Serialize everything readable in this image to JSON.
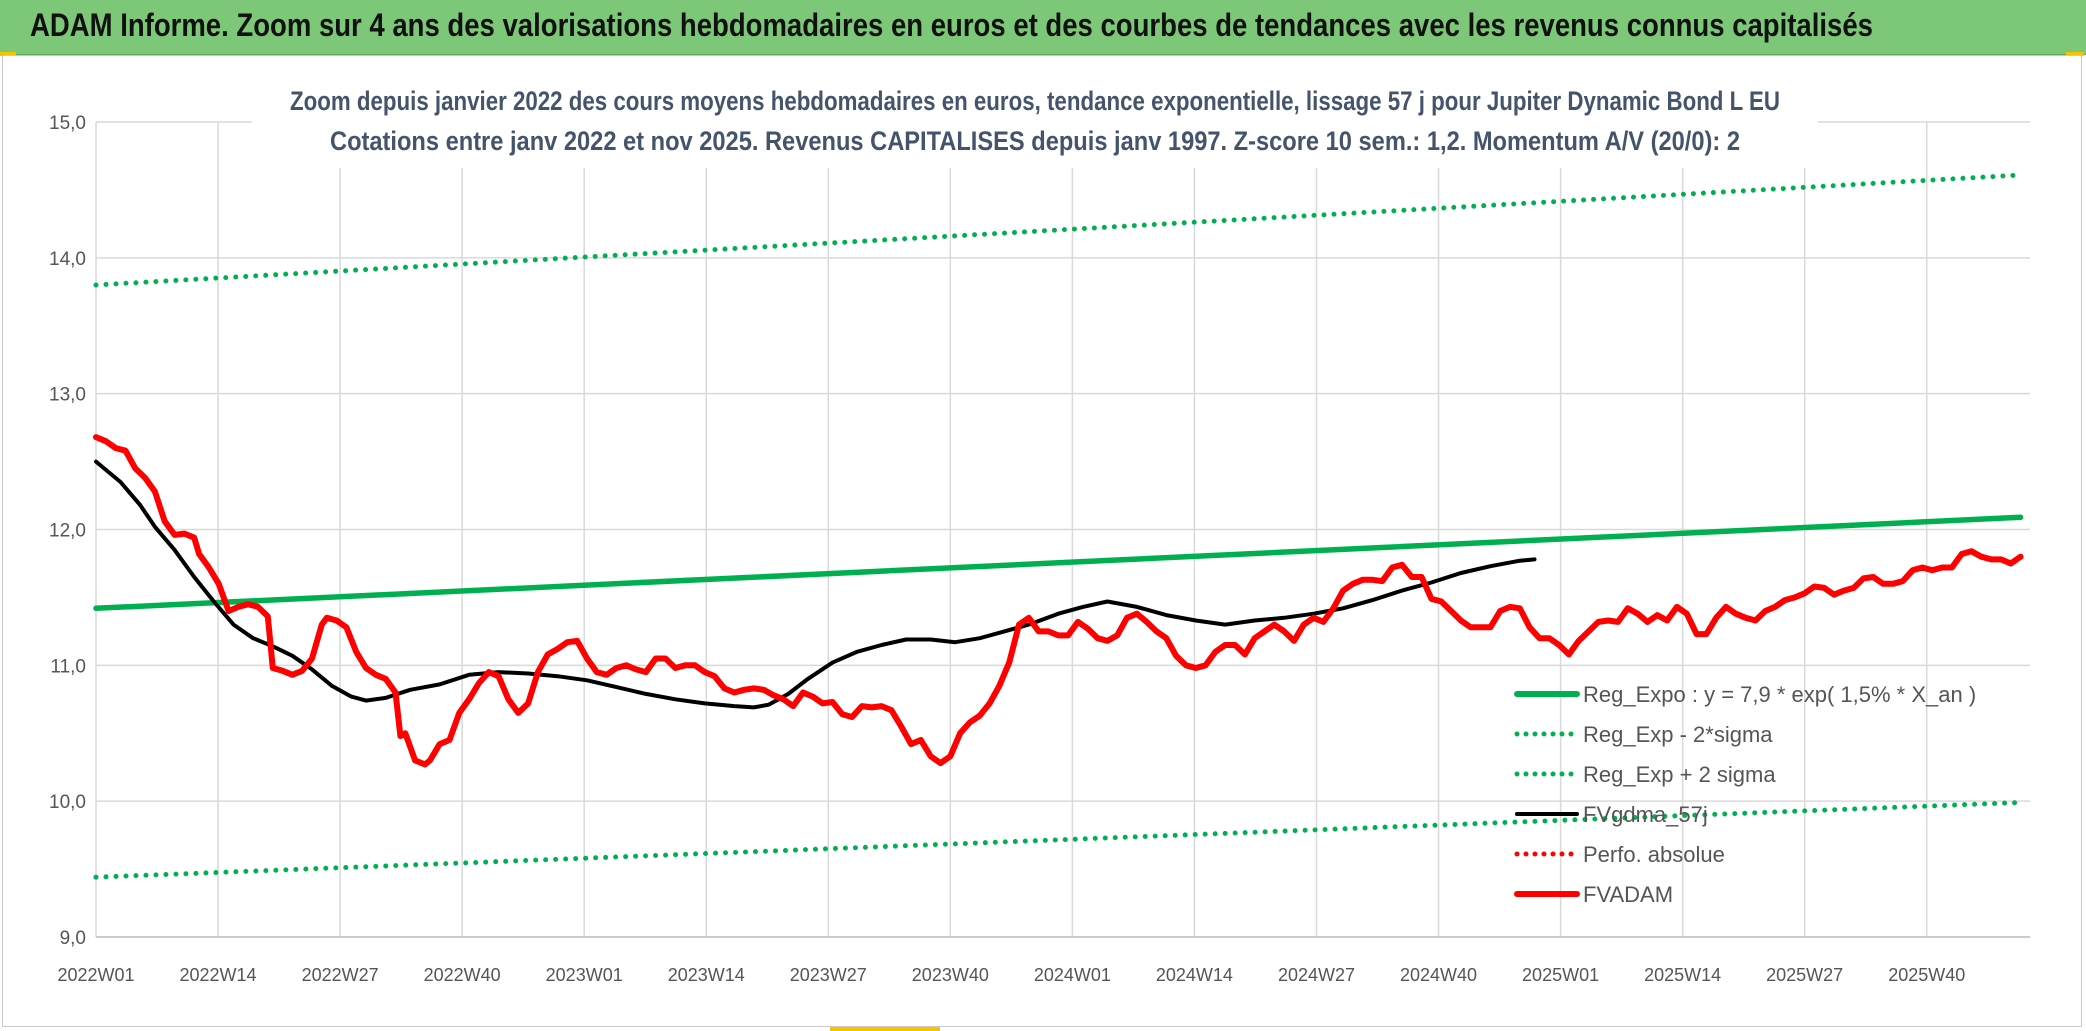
{
  "header": {
    "title": "ADAM Informe. Zoom sur 4 ans des valorisations hebdomadaires en euros et des courbes de tendances avec les revenus connus capitalisés"
  },
  "chart_data": {
    "type": "line",
    "title": "Zoom depuis janvier 2022 des cours moyens hebdomadaires en euros, tendance exponentielle, lissage 57 j pour Jupiter Dynamic Bond L EU",
    "subtitle": "Cotations entre janv 2022 et nov 2025. Revenus CAPITALISES depuis janv 1997. Z-score 10 sem.: 1,2. Momentum A/V (20/0): 2",
    "xlabel": "",
    "ylabel": "",
    "ylim": [
      9.0,
      15.0
    ],
    "y_ticks": [
      "9,0",
      "10,0",
      "11,0",
      "12,0",
      "13,0",
      "14,0",
      "15,0"
    ],
    "x_ticks": [
      "2022W01",
      "2022W14",
      "2022W27",
      "2022W40",
      "2023W01",
      "2023W14",
      "2023W27",
      "2023W40",
      "2024W01",
      "2024W14",
      "2024W27",
      "2024W40",
      "2025W01",
      "2025W14",
      "2025W27",
      "2025W40"
    ],
    "grid": true,
    "legend_position": "bottom-right",
    "x_week_count": 206,
    "series": [
      {
        "name": "Reg_Expo : y = 7,9 * exp( 1,5% *  X_an )",
        "color": "#00b050",
        "style": "solid",
        "points": [
          [
            0,
            11.42
          ],
          [
            205,
            12.09
          ]
        ]
      },
      {
        "name": "Reg_Exp - 2*sigma",
        "color": "#00b050",
        "style": "dotted",
        "points": [
          [
            0,
            9.44
          ],
          [
            205,
            9.99
          ]
        ]
      },
      {
        "name": "Reg_Exp + 2 sigma",
        "color": "#00b050",
        "style": "dotted",
        "points": [
          [
            0,
            13.8
          ],
          [
            205,
            14.61
          ]
        ]
      },
      {
        "name": "FVgdma_57j",
        "color": "#000000",
        "style": "solid",
        "points": [
          [
            0,
            12.5
          ],
          [
            5,
            12.35
          ],
          [
            9,
            12.18
          ],
          [
            12,
            12.02
          ],
          [
            16,
            11.85
          ],
          [
            20,
            11.65
          ],
          [
            24,
            11.47
          ],
          [
            28,
            11.3
          ],
          [
            32,
            11.2
          ],
          [
            36,
            11.14
          ],
          [
            40,
            11.07
          ],
          [
            44,
            10.97
          ],
          [
            48,
            10.85
          ],
          [
            52,
            10.77
          ],
          [
            55,
            10.74
          ],
          [
            59,
            10.76
          ],
          [
            64,
            10.82
          ],
          [
            70,
            10.86
          ],
          [
            76,
            10.93
          ],
          [
            82,
            10.95
          ],
          [
            88,
            10.94
          ],
          [
            94,
            10.92
          ],
          [
            100,
            10.89
          ],
          [
            106,
            10.84
          ],
          [
            112,
            10.79
          ],
          [
            118,
            10.75
          ],
          [
            124,
            10.72
          ],
          [
            130,
            10.7
          ],
          [
            134,
            10.69
          ],
          [
            137,
            10.71
          ],
          [
            141,
            10.79
          ],
          [
            145,
            10.9
          ],
          [
            150,
            11.02
          ],
          [
            155,
            11.1
          ],
          [
            160,
            11.15
          ],
          [
            165,
            11.19
          ],
          [
            170,
            11.19
          ],
          [
            175,
            11.17
          ],
          [
            180,
            11.2
          ],
          [
            185,
            11.25
          ],
          [
            190,
            11.3
          ],
          [
            196,
            11.38
          ],
          [
            201,
            11.43
          ],
          [
            206,
            11.47
          ],
          [
            212,
            11.43
          ],
          [
            218,
            11.37
          ],
          [
            224,
            11.33
          ],
          [
            230,
            11.3
          ],
          [
            236,
            11.33
          ],
          [
            242,
            11.35
          ],
          [
            248,
            11.38
          ],
          [
            254,
            11.42
          ],
          [
            260,
            11.48
          ],
          [
            266,
            11.55
          ],
          [
            272,
            11.61
          ],
          [
            278,
            11.68
          ],
          [
            284,
            11.73
          ],
          [
            290,
            11.77
          ],
          [
            293,
            11.78
          ]
        ]
      },
      {
        "name": "Perfo. absolue",
        "color": "#ff0000",
        "style": "dotted",
        "points": []
      },
      {
        "name": "FVADAM",
        "color": "#ff0000",
        "style": "solid",
        "points": [
          [
            0,
            12.68
          ],
          [
            2,
            12.65
          ],
          [
            4,
            12.6
          ],
          [
            6,
            12.58
          ],
          [
            8,
            12.45
          ],
          [
            10,
            12.38
          ],
          [
            12,
            12.28
          ],
          [
            14,
            12.06
          ],
          [
            16,
            11.96
          ],
          [
            18,
            11.97
          ],
          [
            20,
            11.94
          ],
          [
            21,
            11.82
          ],
          [
            23,
            11.72
          ],
          [
            25,
            11.6
          ],
          [
            27,
            11.4
          ],
          [
            29,
            11.43
          ],
          [
            31,
            11.45
          ],
          [
            33,
            11.43
          ],
          [
            35,
            11.36
          ],
          [
            36,
            10.98
          ],
          [
            38,
            10.96
          ],
          [
            40,
            10.93
          ],
          [
            42,
            10.96
          ],
          [
            44,
            11.05
          ],
          [
            46,
            11.3
          ],
          [
            47,
            11.35
          ],
          [
            49,
            11.33
          ],
          [
            51,
            11.28
          ],
          [
            53,
            11.1
          ],
          [
            55,
            10.98
          ],
          [
            57,
            10.93
          ],
          [
            59,
            10.9
          ],
          [
            61,
            10.8
          ],
          [
            62,
            10.48
          ],
          [
            63,
            10.5
          ],
          [
            65,
            10.3
          ],
          [
            67,
            10.27
          ],
          [
            68,
            10.3
          ],
          [
            70,
            10.42
          ],
          [
            72,
            10.45
          ],
          [
            74,
            10.65
          ],
          [
            76,
            10.75
          ],
          [
            78,
            10.87
          ],
          [
            80,
            10.95
          ],
          [
            82,
            10.92
          ],
          [
            84,
            10.75
          ],
          [
            86,
            10.65
          ],
          [
            88,
            10.72
          ],
          [
            90,
            10.95
          ],
          [
            92,
            11.08
          ],
          [
            94,
            11.12
          ],
          [
            96,
            11.17
          ],
          [
            98,
            11.18
          ],
          [
            100,
            11.05
          ],
          [
            102,
            10.95
          ],
          [
            104,
            10.93
          ],
          [
            106,
            10.98
          ],
          [
            108,
            11.0
          ],
          [
            110,
            10.97
          ],
          [
            112,
            10.95
          ],
          [
            114,
            11.05
          ],
          [
            116,
            11.05
          ],
          [
            118,
            10.98
          ],
          [
            120,
            11.0
          ],
          [
            122,
            11.0
          ],
          [
            124,
            10.95
          ],
          [
            126,
            10.92
          ],
          [
            128,
            10.83
          ],
          [
            130,
            10.8
          ],
          [
            132,
            10.82
          ],
          [
            134,
            10.83
          ],
          [
            136,
            10.82
          ],
          [
            138,
            10.78
          ],
          [
            140,
            10.75
          ],
          [
            142,
            10.7
          ],
          [
            144,
            10.8
          ],
          [
            146,
            10.77
          ],
          [
            148,
            10.72
          ],
          [
            150,
            10.73
          ],
          [
            152,
            10.64
          ],
          [
            154,
            10.62
          ],
          [
            156,
            10.7
          ],
          [
            158,
            10.69
          ],
          [
            160,
            10.7
          ],
          [
            162,
            10.67
          ],
          [
            164,
            10.55
          ],
          [
            166,
            10.42
          ],
          [
            168,
            10.45
          ],
          [
            170,
            10.33
          ],
          [
            172,
            10.28
          ],
          [
            174,
            10.33
          ],
          [
            176,
            10.5
          ],
          [
            178,
            10.58
          ],
          [
            180,
            10.63
          ],
          [
            182,
            10.72
          ],
          [
            184,
            10.85
          ],
          [
            186,
            11.02
          ],
          [
            188,
            11.3
          ],
          [
            190,
            11.35
          ],
          [
            192,
            11.25
          ],
          [
            194,
            11.25
          ],
          [
            196,
            11.22
          ],
          [
            198,
            11.22
          ],
          [
            200,
            11.32
          ],
          [
            202,
            11.27
          ],
          [
            204,
            11.2
          ],
          [
            206,
            11.18
          ],
          [
            208,
            11.22
          ],
          [
            210,
            11.35
          ],
          [
            212,
            11.38
          ],
          [
            214,
            11.32
          ],
          [
            216,
            11.25
          ],
          [
            218,
            11.2
          ],
          [
            220,
            11.07
          ],
          [
            222,
            11.0
          ],
          [
            224,
            10.98
          ],
          [
            226,
            11.0
          ],
          [
            228,
            11.1
          ],
          [
            230,
            11.15
          ],
          [
            232,
            11.15
          ],
          [
            234,
            11.08
          ],
          [
            236,
            11.2
          ],
          [
            238,
            11.25
          ],
          [
            240,
            11.3
          ],
          [
            242,
            11.25
          ],
          [
            244,
            11.18
          ],
          [
            246,
            11.3
          ],
          [
            248,
            11.35
          ],
          [
            250,
            11.32
          ],
          [
            252,
            11.42
          ],
          [
            254,
            11.55
          ],
          [
            256,
            11.6
          ],
          [
            258,
            11.63
          ],
          [
            260,
            11.63
          ],
          [
            262,
            11.62
          ],
          [
            264,
            11.72
          ],
          [
            266,
            11.74
          ],
          [
            268,
            11.65
          ],
          [
            270,
            11.65
          ],
          [
            272,
            11.49
          ],
          [
            274,
            11.47
          ],
          [
            276,
            11.4
          ],
          [
            278,
            11.33
          ],
          [
            280,
            11.28
          ],
          [
            282,
            11.28
          ],
          [
            284,
            11.28
          ],
          [
            286,
            11.4
          ],
          [
            288,
            11.43
          ],
          [
            290,
            11.42
          ],
          [
            292,
            11.28
          ],
          [
            294,
            11.2
          ],
          [
            296,
            11.2
          ],
          [
            298,
            11.15
          ],
          [
            300,
            11.08
          ],
          [
            302,
            11.18
          ],
          [
            304,
            11.25
          ],
          [
            306,
            11.32
          ],
          [
            308,
            11.33
          ],
          [
            310,
            11.32
          ],
          [
            312,
            11.42
          ],
          [
            314,
            11.38
          ],
          [
            316,
            11.32
          ],
          [
            318,
            11.37
          ],
          [
            320,
            11.33
          ],
          [
            322,
            11.43
          ],
          [
            324,
            11.38
          ],
          [
            326,
            11.23
          ],
          [
            328,
            11.23
          ],
          [
            330,
            11.35
          ],
          [
            332,
            11.43
          ],
          [
            334,
            11.38
          ],
          [
            336,
            11.35
          ],
          [
            338,
            11.33
          ],
          [
            340,
            11.4
          ],
          [
            342,
            11.43
          ],
          [
            344,
            11.48
          ],
          [
            346,
            11.5
          ],
          [
            348,
            11.53
          ],
          [
            350,
            11.58
          ],
          [
            352,
            11.57
          ],
          [
            354,
            11.52
          ],
          [
            356,
            11.55
          ],
          [
            358,
            11.57
          ],
          [
            360,
            11.64
          ],
          [
            362,
            11.65
          ],
          [
            364,
            11.6
          ],
          [
            366,
            11.6
          ],
          [
            368,
            11.62
          ],
          [
            370,
            11.7
          ],
          [
            372,
            11.72
          ],
          [
            374,
            11.7
          ],
          [
            376,
            11.72
          ],
          [
            378,
            11.72
          ],
          [
            380,
            11.82
          ],
          [
            382,
            11.84
          ],
          [
            384,
            11.8
          ],
          [
            386,
            11.78
          ],
          [
            388,
            11.78
          ],
          [
            390,
            11.75
          ],
          [
            392,
            11.8
          ]
        ]
      }
    ]
  }
}
